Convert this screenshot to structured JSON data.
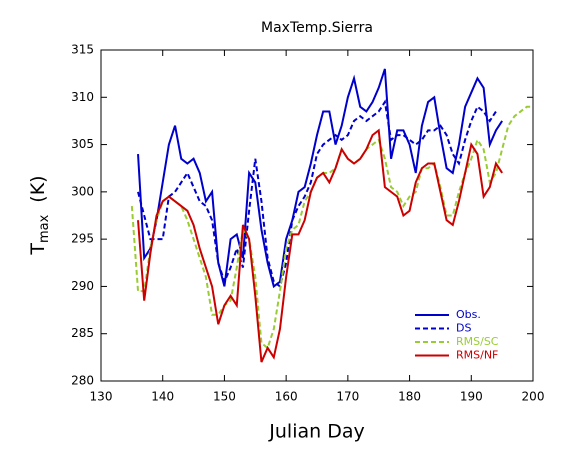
{
  "chart_data": {
    "type": "line",
    "title": "MaxTemp.Sierra",
    "x_label": "Julian Day",
    "y_label": "T",
    "y_label_sub": "max",
    "y_label_unit": "(K)",
    "xlim": [
      130,
      200
    ],
    "xticks": [
      130,
      140,
      150,
      160,
      170,
      180,
      190,
      200
    ],
    "ylim": [
      280,
      315
    ],
    "yticks": [
      280,
      285,
      290,
      295,
      300,
      305,
      310,
      315
    ],
    "legend": "lower right",
    "series": [
      {
        "name": "Obs.",
        "color": "#0000cc",
        "dashed": false,
        "x": [
          136,
          137,
          138,
          139,
          140,
          141,
          142,
          143,
          144,
          145,
          146,
          147,
          148,
          149,
          150,
          151,
          152,
          153,
          154,
          155,
          156,
          157,
          158,
          159,
          160,
          161,
          162,
          163,
          164,
          165,
          166,
          167,
          168,
          169,
          170,
          171,
          172,
          173,
          174,
          175,
          176,
          177,
          178,
          179,
          180,
          181,
          182,
          183,
          184,
          185,
          186,
          187,
          188,
          189,
          190,
          191,
          192,
          193,
          194,
          195
        ],
        "values": [
          304,
          293,
          294,
          297,
          301,
          305,
          307,
          303.5,
          303,
          303.5,
          302,
          299,
          300,
          292.5,
          290,
          295,
          295.5,
          293,
          302,
          301,
          296,
          292.5,
          290,
          290.5,
          295,
          297,
          300,
          300.5,
          303,
          306,
          308.5,
          308.5,
          305,
          307,
          310,
          312,
          309,
          308.5,
          309.5,
          311,
          313,
          303.5,
          306.5,
          306.5,
          305,
          302,
          307,
          309.5,
          310,
          306,
          302.5,
          302,
          305,
          309,
          310.5,
          312,
          311,
          305,
          306.5,
          307.5
        ]
      },
      {
        "name": "DS",
        "color": "#0000cc",
        "dashed": true,
        "x": [
          136,
          137,
          138,
          139,
          140,
          141,
          142,
          143,
          144,
          145,
          146,
          147,
          148,
          149,
          150,
          151,
          152,
          153,
          154,
          155,
          156,
          157,
          158,
          159,
          160,
          161,
          162,
          163,
          164,
          165,
          166,
          167,
          168,
          169,
          170,
          171,
          172,
          173,
          174,
          175,
          176,
          177,
          178,
          179,
          180,
          181,
          182,
          183,
          184,
          185,
          186,
          187,
          188,
          189,
          190,
          191,
          192,
          193,
          194
        ],
        "values": [
          300,
          297.5,
          295,
          295,
          295,
          299.5,
          300,
          301,
          302,
          300.5,
          299,
          298.5,
          297,
          292.5,
          290.5,
          292,
          294,
          292,
          298,
          303.5,
          299,
          293,
          290.5,
          290,
          292.5,
          297,
          298.5,
          299.5,
          301,
          304,
          305,
          305.5,
          306,
          305.5,
          306,
          307.5,
          308,
          307.5,
          308,
          308.5,
          309.5,
          305.5,
          306,
          306,
          305.5,
          305,
          305.5,
          306.5,
          306.5,
          307,
          306,
          304,
          303,
          305.5,
          307.5,
          309,
          308.5,
          307.5,
          308.5
        ]
      },
      {
        "name": "RMS/SC",
        "color": "#99cc33",
        "dashed": true,
        "x": [
          135,
          136,
          137,
          138,
          139,
          140,
          141,
          142,
          143,
          144,
          145,
          146,
          147,
          148,
          149,
          150,
          151,
          152,
          153,
          154,
          155,
          156,
          157,
          158,
          159,
          160,
          161,
          162,
          163,
          164,
          165,
          166,
          167,
          168,
          169,
          170,
          171,
          172,
          173,
          174,
          175,
          176,
          177,
          178,
          179,
          180,
          181,
          182,
          183,
          184,
          185,
          186,
          187,
          188,
          189,
          190,
          191,
          192,
          193,
          194,
          195,
          196,
          197,
          198,
          199,
          200
        ],
        "values": [
          298.5,
          289.5,
          289.5,
          294,
          297,
          299,
          299.5,
          299,
          298.5,
          297,
          295,
          293,
          291,
          287,
          287,
          288,
          288.5,
          292,
          296,
          295,
          291,
          284,
          283.5,
          285.5,
          289.5,
          294,
          296,
          296.5,
          299,
          300,
          301.5,
          302,
          302,
          302.5,
          304.5,
          303.5,
          303,
          303.5,
          304.5,
          305,
          305.5,
          303.5,
          300.5,
          300,
          298.5,
          299.5,
          300,
          302.5,
          302.5,
          303,
          300.5,
          297.5,
          297.5,
          300,
          302,
          303.5,
          305.5,
          304.5,
          301,
          302,
          304.5,
          307,
          308,
          308.5,
          309,
          309
        ]
      },
      {
        "name": "RMS/NF",
        "color": "#cc0000",
        "dashed": false,
        "x": [
          136,
          137,
          138,
          139,
          140,
          141,
          142,
          143,
          144,
          145,
          146,
          147,
          148,
          149,
          150,
          151,
          152,
          153,
          154,
          155,
          156,
          157,
          158,
          159,
          160,
          161,
          162,
          163,
          164,
          165,
          166,
          167,
          168,
          169,
          170,
          171,
          172,
          173,
          174,
          175,
          176,
          177,
          178,
          179,
          180,
          181,
          182,
          183,
          184,
          185,
          186,
          187,
          188,
          189,
          190,
          191,
          192,
          193,
          194,
          195
        ],
        "values": [
          297,
          288.5,
          293.5,
          297.5,
          299,
          299.5,
          299,
          298.5,
          298,
          296.5,
          294,
          292,
          290,
          286,
          288,
          289,
          288,
          296.5,
          295,
          289,
          282,
          283.5,
          282.5,
          285.5,
          291,
          295.5,
          295.5,
          297,
          300,
          301.5,
          302,
          301,
          302.5,
          304.5,
          303.5,
          303,
          303.5,
          304.5,
          306,
          306.5,
          300.5,
          300,
          299.5,
          297.5,
          298,
          301,
          302.5,
          303,
          303,
          300,
          297,
          296.5,
          299,
          302,
          305,
          304,
          299.5,
          300.5,
          303,
          302
        ]
      }
    ]
  }
}
